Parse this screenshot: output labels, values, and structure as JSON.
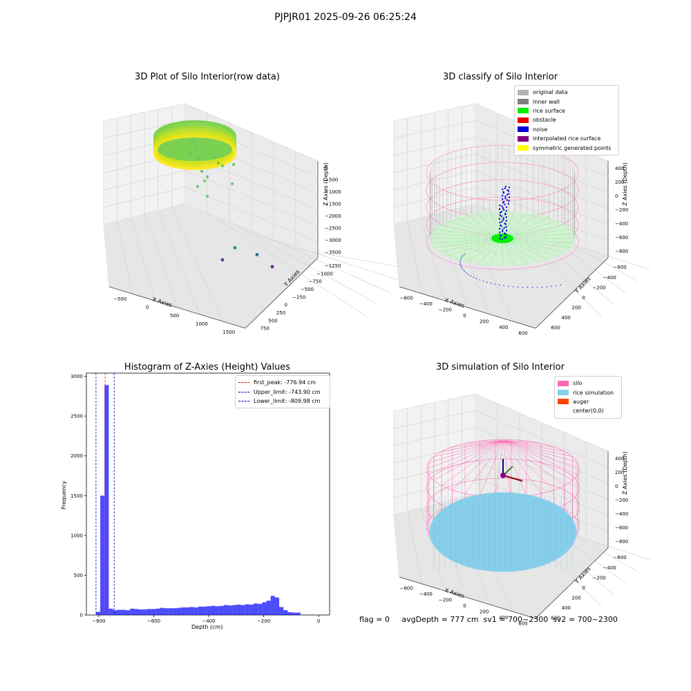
{
  "figure": {
    "suptitle": "PJPJR01 2025-09-26 06:25:24",
    "footer": "flag = 0     avgDepth = 777 cm  sv1 = 700~2300  sv2 = 700~2300"
  },
  "chart_data": [
    {
      "type": "scatter",
      "title": "3D Plot of Silo Interior(row data)",
      "xlabel": "X Axies",
      "ylabel": "Y Axies",
      "zlabel": "Z Axies (Depth)",
      "x_ticks": [
        "−500",
        "0",
        "500",
        "1000",
        "1500"
      ],
      "y_ticks": [
        "750",
        "500",
        "250",
        "0",
        "−250",
        "−500",
        "−750",
        "−1000",
        "−1250"
      ],
      "z_ticks": [
        "0",
        "−500",
        "−1000",
        "−1500",
        "−2000",
        "−2500",
        "−3000",
        "−3500"
      ],
      "outliers": [
        {
          "x": 1000,
          "y": -900,
          "z": -3600,
          "color": "#3b528b"
        },
        {
          "x": 1450,
          "y": -600,
          "z": -3550,
          "color": "#21918c"
        },
        {
          "x": 1700,
          "y": -800,
          "z": -3550,
          "color": "#2c728e"
        },
        {
          "x": 1750,
          "y": -1100,
          "z": -3600,
          "color": "#6a2b8a"
        }
      ]
    },
    {
      "type": "scatter",
      "title": "3D classify of Silo Interior",
      "xlabel": "X Axies",
      "ylabel": "Y Axies",
      "zlabel": "Z Axies (Depth)",
      "x_ticks": [
        "−600",
        "−400",
        "−200",
        "0",
        "200",
        "400",
        "600"
      ],
      "y_ticks": [
        "600",
        "400",
        "200",
        "0",
        "−200",
        "−400",
        "−600"
      ],
      "z_ticks": [
        "400",
        "200",
        "0",
        "−200",
        "−400",
        "−600",
        "−800"
      ],
      "legend": [
        {
          "label": "original data",
          "color": "#b3b3b3"
        },
        {
          "label": "inner wall",
          "color": "#808080"
        },
        {
          "label": "rice surface",
          "color": "#00ee00"
        },
        {
          "label": "obstacle",
          "color": "#ee0000"
        },
        {
          "label": "noise",
          "color": "#0000dd"
        },
        {
          "label": "interpolated rice surface",
          "color": "#800080"
        },
        {
          "label": "symmetric generated points",
          "color": "#ffff00"
        }
      ]
    },
    {
      "type": "bar",
      "title": "Histogram of Z-Axies (Height) Values",
      "xlabel": "Depth (cm)",
      "ylabel": "Frequency",
      "xlim": [
        -845,
        40
      ],
      "ylim": [
        0,
        3040
      ],
      "x_ticks": [
        -800,
        -600,
        -400,
        -200,
        0
      ],
      "y_ticks": [
        0,
        500,
        1000,
        1500,
        2000,
        2500,
        3000
      ],
      "bin_edges_start": -810,
      "bin_width": 15.5,
      "values": [
        40,
        1500,
        2890,
        80,
        60,
        65,
        65,
        60,
        80,
        75,
        70,
        70,
        75,
        75,
        80,
        90,
        85,
        85,
        85,
        90,
        95,
        95,
        100,
        95,
        105,
        105,
        110,
        115,
        110,
        115,
        125,
        120,
        125,
        130,
        125,
        135,
        130,
        145,
        140,
        160,
        180,
        240,
        220,
        100,
        60,
        35,
        30,
        30
      ],
      "bar_color": "#0000ff",
      "vlines": [
        {
          "label": "first_peak: -776.94 cm",
          "x": -776.94,
          "color": "#ff0000"
        },
        {
          "label": "Upper_limit: -743.90 cm",
          "x": -743.9,
          "color": "#0000cc"
        },
        {
          "label": "Lower_limit: -809.98 cm",
          "x": -809.98,
          "color": "#0000cc"
        }
      ]
    },
    {
      "type": "scatter",
      "title": "3D simulation of Silo Interior",
      "xlabel": "X Axies",
      "ylabel": "Y Axies",
      "zlabel": "Z Axies (Depth)",
      "x_ticks": [
        "−600",
        "−400",
        "−200",
        "0",
        "200",
        "400",
        "600"
      ],
      "y_ticks": [
        "600",
        "400",
        "200",
        "0",
        "−200",
        "−400",
        "−600"
      ],
      "z_ticks": [
        "400",
        "200",
        "0",
        "−200",
        "−400",
        "−600",
        "−800"
      ],
      "legend": [
        {
          "label": "silo",
          "color": "#ff69b4"
        },
        {
          "label": "rice simulation",
          "color": "#87ceeb"
        },
        {
          "label": "auger",
          "color": "#ff4500"
        },
        {
          "label": "center(0,0)",
          "color": ""
        }
      ]
    }
  ]
}
